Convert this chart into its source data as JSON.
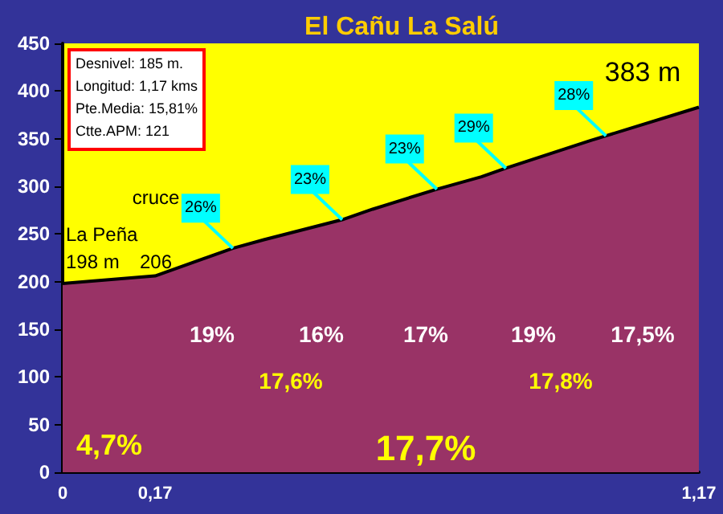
{
  "chart_data": {
    "type": "area",
    "title": "El Cañu La Salú",
    "x": [
      0,
      0.17,
      0.313,
      0.37,
      0.514,
      0.57,
      0.688,
      0.77,
      0.815,
      0.97,
      0.999,
      1.17
    ],
    "series": [
      {
        "color": "#993366",
        "values": [
          198,
          206,
          235,
          244,
          265,
          276,
          297,
          310,
          319,
          348,
          353,
          383
        ]
      }
    ],
    "xlim": [
      0,
      1.17
    ],
    "xticks": [
      0,
      {
        "value": 0.17,
        "label": "0,17"
      },
      {
        "value": 1.17,
        "label": "1,17"
      }
    ],
    "ylim": [
      0,
      450
    ],
    "yticks": [
      0,
      50,
      100,
      150,
      200,
      250,
      300,
      350,
      400,
      450
    ],
    "grid": false,
    "marker": "none",
    "line_style": "solid",
    "annotations": [
      "Desnivel: 185 m.",
      "Longitud: 1,17 kms",
      "Pte.Media: 15,81%",
      "Ctte.APM: 121",
      "383 m",
      "cruce",
      "La Peña",
      "198 m",
      "206",
      "19%",
      "16%",
      "17%",
      "19%",
      "17,5%",
      "17,6%",
      "17,8%",
      "17,7%",
      "4,7%",
      {
        "text": "26%",
        "x": 0.313,
        "y": 235
      },
      {
        "text": "23%",
        "x": 0.514,
        "y": 265
      },
      {
        "text": "23%",
        "x": 0.688,
        "y": 297
      },
      {
        "text": "29%",
        "x": 0.815,
        "y": 319
      },
      {
        "text": "28%",
        "x": 0.999,
        "y": 353
      }
    ]
  }
}
